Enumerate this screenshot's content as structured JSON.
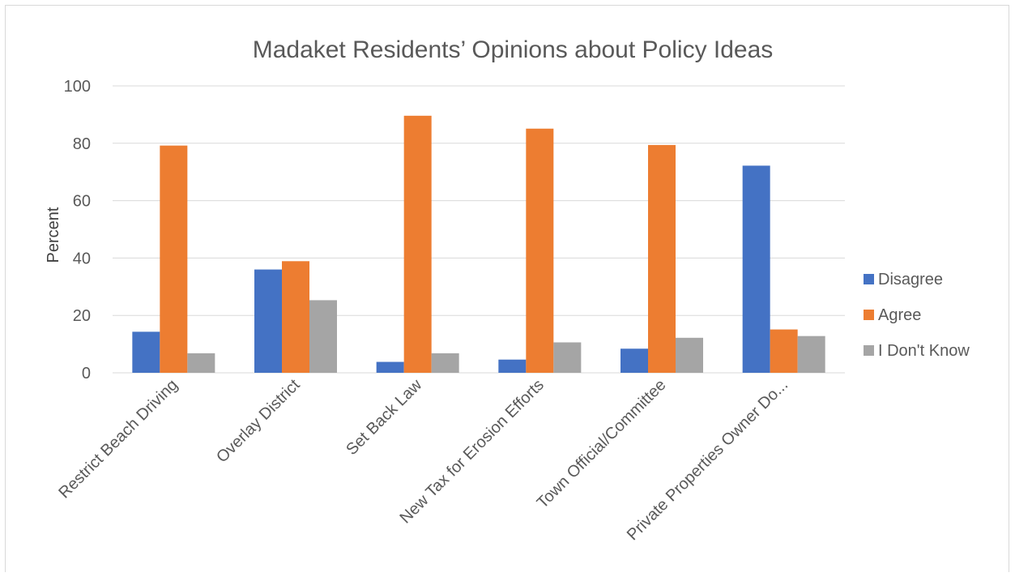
{
  "chart_data": {
    "type": "bar",
    "title": "Madaket Residents’ Opinions about Policy Ideas",
    "xlabel": "",
    "ylabel": "Percent",
    "ylim": [
      0,
      100
    ],
    "yticks": [
      0,
      20,
      40,
      60,
      80,
      100
    ],
    "grid": true,
    "legend_position": "right",
    "categories": [
      "Restrict Beach Driving",
      "Overlay District",
      "Set Back Law",
      "New Tax for Erosion Efforts",
      "Town Official/Committee",
      "Private Properties Owner Do..."
    ],
    "series": [
      {
        "name": "Disagree",
        "color": "#4472c4",
        "values": [
          14.3,
          36.0,
          3.8,
          4.6,
          8.4,
          72.2
        ]
      },
      {
        "name": "Agree",
        "color": "#ed7d31",
        "values": [
          79.2,
          38.9,
          89.6,
          85.1,
          79.4,
          15.1
        ]
      },
      {
        "name": "I Don't Know",
        "color": "#a5a5a5",
        "values": [
          6.8,
          25.3,
          6.8,
          10.6,
          12.2,
          12.8
        ]
      }
    ]
  }
}
